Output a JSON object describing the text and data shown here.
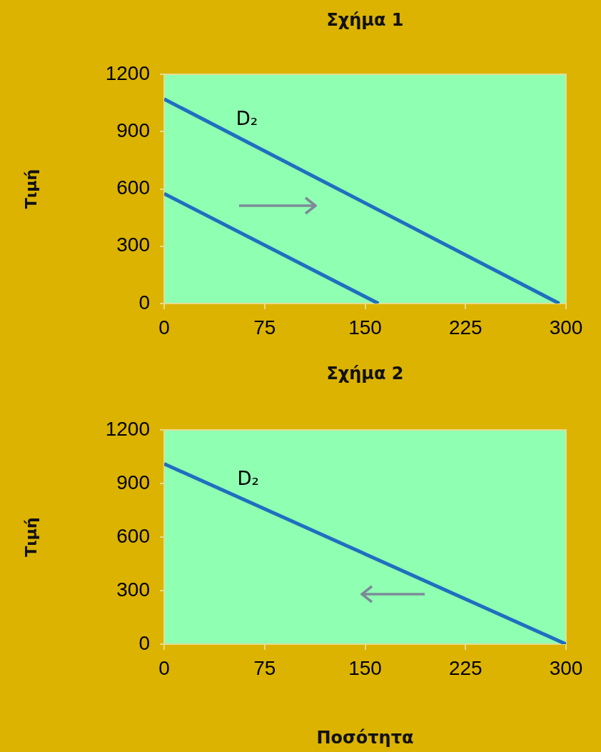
{
  "chart_data": [
    {
      "type": "line",
      "title": "Σχήμα 1",
      "ylabel": "Τιμή",
      "xlim": [
        0,
        300
      ],
      "xticks": [
        0,
        75,
        150,
        225,
        300
      ],
      "ylim": [
        0,
        1200
      ],
      "yticks": [
        0,
        300,
        600,
        900,
        1200
      ],
      "marker": "none",
      "line_style": "solid",
      "series": [
        {
          "name": "D₂",
          "color": "#1f6fc0",
          "x": [
            0,
            295
          ],
          "values": [
            1070,
            0
          ]
        },
        {
          "color": "#1f6fc0",
          "x": [
            0,
            160
          ],
          "values": [
            575,
            0
          ]
        }
      ]
    },
    {
      "type": "line",
      "title": "Σχήμα 2",
      "ylabel": "Τιμή",
      "xlabel": "Ποσότητα",
      "xlim": [
        0,
        300
      ],
      "xticks": [
        0,
        75,
        150,
        225,
        300
      ],
      "ylim": [
        0,
        1200
      ],
      "yticks": [
        0,
        300,
        600,
        900,
        1200
      ],
      "marker": "none",
      "line_style": "solid",
      "series": [
        {
          "name": "D₂",
          "color": "#1f6fc0",
          "x": [
            0,
            300
          ],
          "values": [
            1010,
            0
          ]
        }
      ]
    }
  ]
}
